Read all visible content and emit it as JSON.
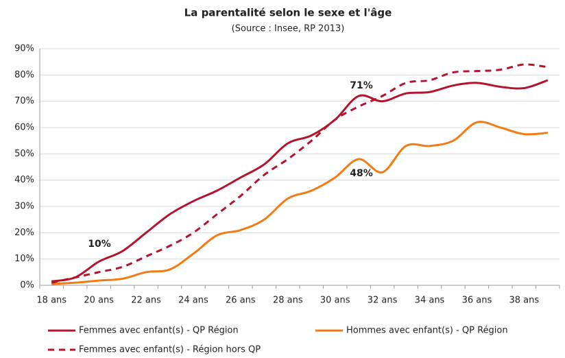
{
  "chart_data": {
    "type": "line",
    "title": "La parentalité selon le sexe et l'âge",
    "subtitle": "(Source : Insee, RP 2013)",
    "categories": [
      "18 ans",
      null,
      "20 ans",
      null,
      "22 ans",
      null,
      "24 ans",
      null,
      "26 ans",
      null,
      "28 ans",
      null,
      "30 ans",
      null,
      "32 ans",
      null,
      "34 ans",
      null,
      "36 ans",
      null,
      "38 ans",
      null
    ],
    "series": [
      {
        "name": "Femmes avec enfant(s) - QP Région",
        "color": "#b5132b",
        "dash": false,
        "values": [
          1.5,
          3,
          9,
          13,
          20,
          27,
          32,
          36,
          41,
          46,
          54,
          57,
          63,
          72,
          70,
          73,
          73.5,
          76,
          77,
          75.5,
          75,
          78
        ]
      },
      {
        "name": "Hommes avec enfant(s) - QP Région",
        "color": "#f47a12",
        "dash": false,
        "values": [
          0.5,
          1,
          1.8,
          2.5,
          5,
          6,
          12,
          19,
          21,
          25,
          33,
          36,
          41,
          48,
          43,
          53,
          53,
          55,
          62,
          60,
          57.5,
          58
        ]
      },
      {
        "name": "Femmes avec enfant(s) - Région hors QP",
        "color": "#b5132b",
        "dash": true,
        "values": [
          1,
          3,
          5,
          7,
          11,
          15,
          20,
          27,
          34,
          42,
          48,
          55,
          63,
          68,
          72,
          77,
          78,
          81,
          81.5,
          82,
          84,
          83
        ]
      }
    ],
    "annotations": [
      "10%",
      "71%",
      "48%"
    ],
    "ylim": [
      0,
      90
    ],
    "yticks": [
      {
        "value": 0,
        "label": "0%"
      },
      {
        "value": 10,
        "label": "10%"
      },
      {
        "value": 20,
        "label": "20%"
      },
      {
        "value": 30,
        "label": "30%"
      },
      {
        "value": 40,
        "label": "40%"
      },
      {
        "value": 50,
        "label": "50%"
      },
      {
        "value": 60,
        "label": "60%"
      },
      {
        "value": 70,
        "label": "70%"
      },
      {
        "value": 80,
        "label": "80%"
      },
      {
        "value": 90,
        "label": "90%"
      }
    ],
    "grid": true
  }
}
